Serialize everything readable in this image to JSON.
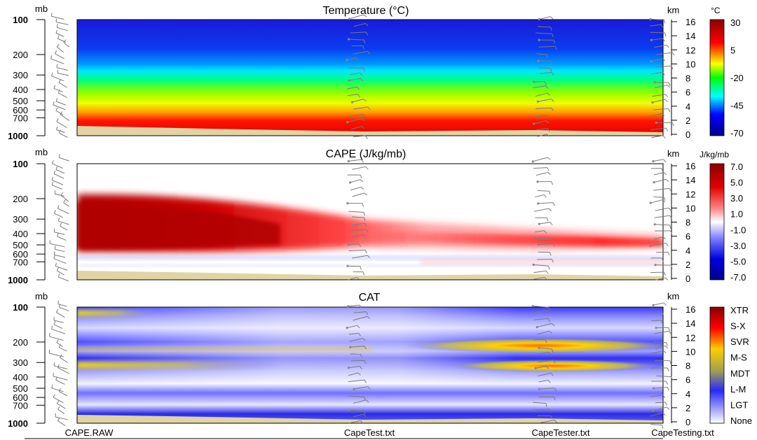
{
  "chart_data": [
    {
      "type": "heatmap",
      "title": "Temperature (°C)",
      "left_axis_unit": "mb",
      "right_axis_unit": "km",
      "pressure_ticks": [
        "100",
        "200",
        "300",
        "400",
        "500",
        "600",
        "700",
        "1000"
      ],
      "height_ticks": [
        "16",
        "14",
        "12",
        "10",
        "8",
        "6",
        "4",
        "2",
        "0"
      ],
      "colorbar_unit": "°C",
      "colorbar_labels": [
        "30",
        "5",
        "-20",
        "-45",
        "-70"
      ],
      "colorbar_colors": [
        "#8b0000",
        "#ff0000",
        "#ffff00",
        "#00ff00",
        "#00ffff",
        "#0000ff",
        "#00008b"
      ],
      "description_of_values": "Temperature decreases with height: about 25 to 30 °C near 1000 mb, about 0 °C near 600 mb, about -45 °C near 300 mb, near -60 °C at 100-200 mb."
    },
    {
      "type": "heatmap",
      "title": "CAPE (J/kg/mb)",
      "left_axis_unit": "mb",
      "right_axis_unit": "km",
      "pressure_ticks": [
        "100",
        "200",
        "300",
        "400",
        "500",
        "600",
        "700",
        "1000"
      ],
      "height_ticks": [
        "16",
        "14",
        "12",
        "10",
        "8",
        "6",
        "4",
        "2",
        "0"
      ],
      "colorbar_unit": "J/kg/mb",
      "colorbar_labels": [
        "7.0",
        "5.0",
        "3.0",
        "1.0",
        "-1.0",
        "-3.0",
        "-5.0",
        "-7.0"
      ],
      "colorbar_colors": [
        "#8b0000",
        "#ff0000",
        "#ffffff",
        "#0000ff",
        "#00008b"
      ],
      "description_of_values": "Strong positive CAPE (about 5 to 7) between 200 and 600 mb at CAPE.RAW, weakening and descending to about 2-3 near 500 mb by CapeTesting.txt; slightly negative values near 700-850 mb."
    },
    {
      "type": "heatmap",
      "title": "CAT",
      "left_axis_unit": "mb",
      "right_axis_unit": "km",
      "pressure_ticks": [
        "100",
        "200",
        "300",
        "400",
        "500",
        "600",
        "700",
        "1000"
      ],
      "height_ticks": [
        "16",
        "14",
        "12",
        "10",
        "8",
        "6",
        "4",
        "2",
        "0"
      ],
      "colorbar_labels": [
        "XTR",
        "S-X",
        "SVR",
        "M-S",
        "MDT",
        "L-M",
        "LGT",
        "None"
      ],
      "colorbar_colors": [
        "#8b0000",
        "#ff0000",
        "#ffcc00",
        "#a0a040",
        "#3030ff",
        "#ffffff"
      ],
      "description_of_values": "Mostly light (LGT/L-M) turbulence bands; moderate (MDT) bands near 120 mb and 320 mb at CAPE.RAW and near 230 mb and 320 mb at CapeTester.txt."
    }
  ],
  "x_labels": [
    "CAPE.RAW",
    "CapeTest.txt",
    "CapeTester.txt",
    "CapeTesting.txt"
  ]
}
